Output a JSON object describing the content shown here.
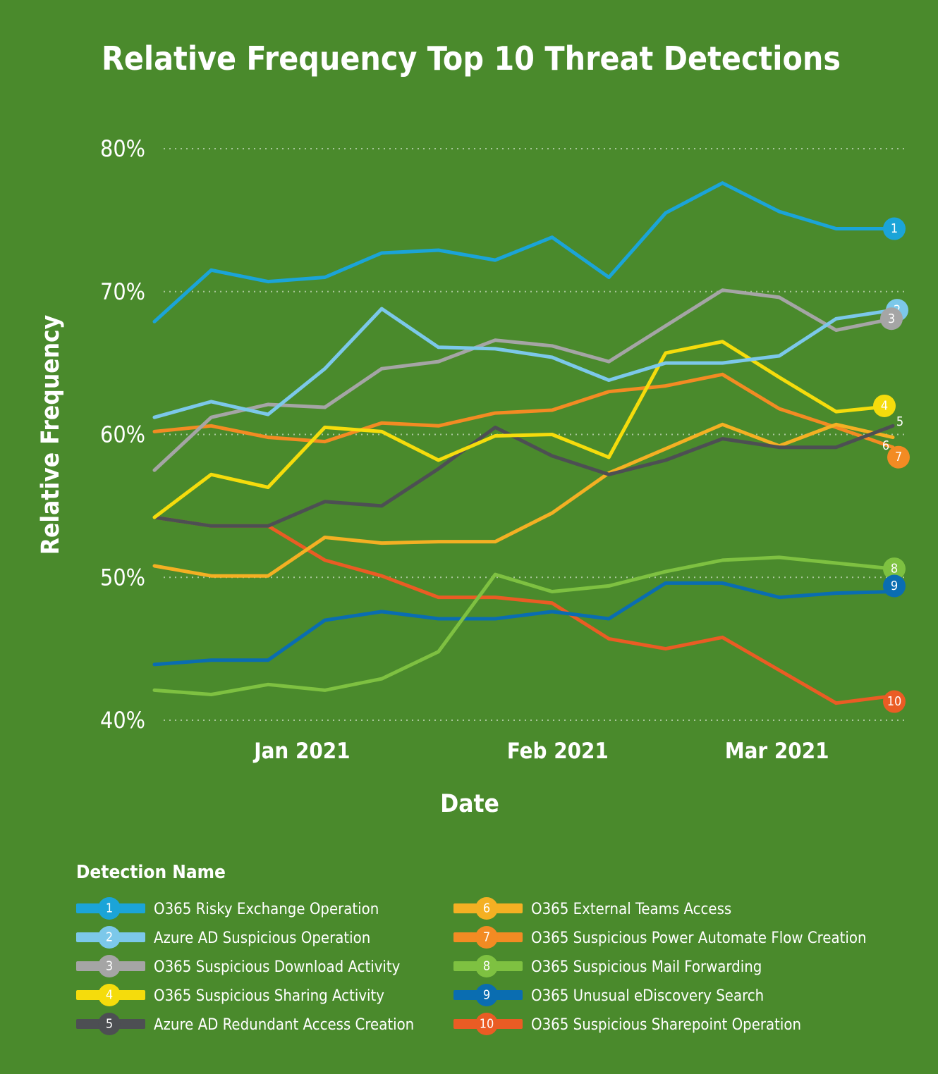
{
  "chart_data": {
    "type": "line",
    "title": "Relative Frequency Top 10 Threat Detections",
    "xlabel": "Date",
    "ylabel": "Relative Frequency",
    "ylim": [
      40,
      80
    ],
    "yticks": [
      {
        "value": 80,
        "label": "80%"
      },
      {
        "value": 70,
        "label": "70%"
      },
      {
        "value": 60,
        "label": "60%"
      },
      {
        "value": 50,
        "label": "50%"
      },
      {
        "value": 40,
        "label": "40%"
      }
    ],
    "x_points": 14,
    "xticks": [
      {
        "index": 2.6,
        "label": "Jan 2021"
      },
      {
        "index": 7.1,
        "label": "Feb 2021"
      },
      {
        "index": 10.96,
        "label": "Mar 2021"
      }
    ],
    "legend_title": "Detection Name",
    "series": [
      {
        "id": "1",
        "name": "O365 Risky Exchange Operation",
        "color": "#1ba4d8",
        "values": [
          67.9,
          71.5,
          70.7,
          71.0,
          72.7,
          72.9,
          72.2,
          73.8,
          71.0,
          75.5,
          77.6,
          75.6,
          74.4,
          74.4
        ]
      },
      {
        "id": "2",
        "name": "Azure AD Suspicious Operation",
        "color": "#7cc8ea",
        "values": [
          61.2,
          62.3,
          61.4,
          64.6,
          68.8,
          66.1,
          66.0,
          65.4,
          63.8,
          65.0,
          65.0,
          65.5,
          68.1,
          68.7
        ]
      },
      {
        "id": "3",
        "name": "O365 Suspicious Download Activity",
        "color": "#a5a5a5",
        "values": [
          57.5,
          61.2,
          62.1,
          61.9,
          64.6,
          65.1,
          66.6,
          66.2,
          65.1,
          67.6,
          70.1,
          69.6,
          67.3,
          68.1
        ]
      },
      {
        "id": "4",
        "name": "O365 Suspicious Sharing Activity",
        "color": "#f5dc0c",
        "values": [
          54.2,
          57.2,
          56.3,
          60.5,
          60.2,
          58.2,
          59.9,
          60.0,
          58.4,
          65.7,
          66.5,
          64.0,
          61.6,
          62.0
        ]
      },
      {
        "id": "5",
        "name": "Azure AD Redundant Access Creation",
        "color": "#4d4f53",
        "values": [
          54.2,
          53.6,
          53.6,
          55.3,
          55.0,
          57.6,
          60.5,
          58.5,
          57.2,
          58.2,
          59.7,
          59.1,
          59.1,
          60.6
        ]
      },
      {
        "id": "6",
        "name": "O365 External Teams Access",
        "color": "#f4b023",
        "values": [
          50.8,
          50.1,
          50.1,
          52.8,
          52.4,
          52.5,
          52.5,
          54.5,
          57.3,
          59.0,
          60.7,
          59.2,
          60.7,
          59.8
        ]
      },
      {
        "id": "7",
        "name": "O365 Suspicious Power Automate Flow Creation",
        "color": "#f38b23",
        "values": [
          60.2,
          60.6,
          59.8,
          59.5,
          60.8,
          60.6,
          61.5,
          61.7,
          63.0,
          63.4,
          64.2,
          61.8,
          60.5,
          59.1
        ]
      },
      {
        "id": "8",
        "name": "O365 Suspicious Mail Forwarding",
        "color": "#7ec141",
        "values": [
          42.1,
          41.8,
          42.5,
          42.1,
          42.9,
          44.8,
          50.2,
          49.0,
          49.4,
          50.4,
          51.2,
          51.4,
          51.0,
          50.6
        ]
      },
      {
        "id": "9",
        "name": "O365 Unusual eDiscovery Search",
        "color": "#0a6db1",
        "values": [
          43.9,
          44.2,
          44.2,
          47.0,
          47.6,
          47.1,
          47.1,
          47.6,
          47.1,
          49.6,
          49.6,
          48.6,
          48.9,
          49.0
        ]
      },
      {
        "id": "10",
        "name": "O365 Suspicious Sharepoint Operation",
        "color": "#ea5c24",
        "values": [
          54.2,
          53.6,
          53.6,
          51.2,
          50.1,
          48.6,
          48.6,
          48.2,
          45.7,
          45.0,
          45.8,
          43.5,
          41.2,
          41.7
        ]
      }
    ]
  }
}
